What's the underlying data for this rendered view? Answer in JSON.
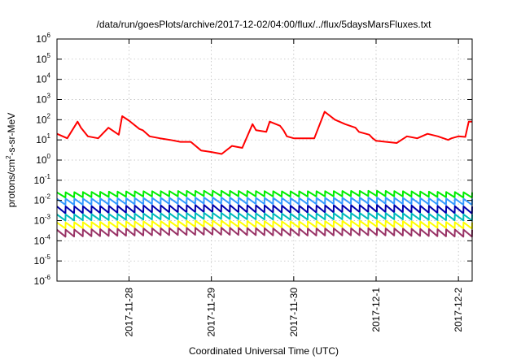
{
  "chart_data": {
    "type": "line",
    "title": "/data/run/goesPlots/archive/2017-12-02/04:00/flux/../flux/5daysMarsFluxes.txt",
    "xlabel": "Coordinated Universal Time (UTC)",
    "ylabel": {
      "prefix": "protons/cm",
      "sup": "2",
      "suffix": "-s-sr-MeV"
    },
    "y_scale": "log",
    "ylim": [
      1e-06,
      1000000.0
    ],
    "xlim": [
      "2017-11-27T03:00",
      "2017-12-02T04:00"
    ],
    "grid": true,
    "y_ticks": [
      {
        "base": "10",
        "exp": "-6",
        "value": 1e-06
      },
      {
        "base": "10",
        "exp": "-5",
        "value": 1e-05
      },
      {
        "base": "10",
        "exp": "-4",
        "value": 0.0001
      },
      {
        "base": "10",
        "exp": "-3",
        "value": 0.001
      },
      {
        "base": "10",
        "exp": "-2",
        "value": 0.01
      },
      {
        "base": "10",
        "exp": "-1",
        "value": 0.1
      },
      {
        "base": "10",
        "exp": "0",
        "value": 1
      },
      {
        "base": "10",
        "exp": "1",
        "value": 10
      },
      {
        "base": "10",
        "exp": "2",
        "value": 100
      },
      {
        "base": "10",
        "exp": "3",
        "value": 1000
      },
      {
        "base": "10",
        "exp": "4",
        "value": 10000
      },
      {
        "base": "10",
        "exp": "5",
        "value": 100000
      },
      {
        "base": "10",
        "exp": "6",
        "value": 1000000
      }
    ],
    "x_ticks": [
      {
        "label": "2017-11-28",
        "value": "2017-11-28T00:00"
      },
      {
        "label": "2017-11-29",
        "value": "2017-11-29T00:00"
      },
      {
        "label": "2017-11-30",
        "value": "2017-11-30T00:00"
      },
      {
        "label": "2017-12-1",
        "value": "2017-12-01T00:00"
      },
      {
        "label": "2017-12-2",
        "value": "2017-12-02T00:00"
      }
    ],
    "series": [
      {
        "color": "#ff0000",
        "x": [
          "2017-11-27T03:00",
          "2017-11-27T06:00",
          "2017-11-27T09:00",
          "2017-11-27T10:00",
          "2017-11-27T12:00",
          "2017-11-27T15:00",
          "2017-11-27T18:00",
          "2017-11-27T21:00",
          "2017-11-27T22:00",
          "2017-11-28T00:00",
          "2017-11-28T03:00",
          "2017-11-28T04:00",
          "2017-11-28T06:00",
          "2017-11-28T09:00",
          "2017-11-28T12:00",
          "2017-11-28T15:00",
          "2017-11-28T18:00",
          "2017-11-28T21:00",
          "2017-11-29T00:00",
          "2017-11-29T03:00",
          "2017-11-29T06:00",
          "2017-11-29T09:00",
          "2017-11-29T12:00",
          "2017-11-29T13:00",
          "2017-11-29T16:00",
          "2017-11-29T17:00",
          "2017-11-29T20:00",
          "2017-11-29T21:00",
          "2017-11-29T22:00",
          "2017-11-30T00:00",
          "2017-11-30T03:00",
          "2017-11-30T06:00",
          "2017-11-30T09:00",
          "2017-11-30T12:00",
          "2017-11-30T15:00",
          "2017-11-30T18:00",
          "2017-11-30T19:00",
          "2017-11-30T22:00",
          "2017-11-30T23:00",
          "2017-12-01T00:00",
          "2017-12-01T03:00",
          "2017-12-01T06:00",
          "2017-12-01T09:00",
          "2017-12-01T12:00",
          "2017-12-01T15:00",
          "2017-12-01T18:00",
          "2017-12-01T21:00",
          "2017-12-01T22:00",
          "2017-12-02T00:00",
          "2017-12-02T02:00",
          "2017-12-02T03:00",
          "2017-12-02T04:00"
        ],
        "y": [
          20,
          12,
          80,
          40,
          15,
          12,
          40,
          18,
          150,
          90,
          35,
          30,
          15,
          12,
          10,
          8,
          8,
          3,
          2.5,
          2,
          5,
          4,
          60,
          30,
          25,
          80,
          50,
          30,
          15,
          12,
          12,
          12,
          250,
          100,
          60,
          40,
          25,
          18,
          12,
          9,
          8,
          7,
          15,
          12,
          20,
          15,
          10,
          12,
          15,
          14,
          80,
          80
        ]
      },
      {
        "color": "#00ee00",
        "x": [
          "2017-11-27T03:00",
          "2017-11-28T00:00",
          "2017-11-29T00:00",
          "2017-11-30T00:00",
          "2017-12-01T00:00",
          "2017-12-02T04:00"
        ],
        "y": [
          0.025,
          0.028,
          0.03,
          0.028,
          0.03,
          0.025
        ],
        "sawtooth": {
          "low_factor": 0.55,
          "cycles": 48
        }
      },
      {
        "color": "#3399ff",
        "x": [
          "2017-11-27T03:00",
          "2017-11-28T00:00",
          "2017-11-29T00:00",
          "2017-11-30T00:00",
          "2017-12-01T00:00",
          "2017-12-02T04:00"
        ],
        "y": [
          0.012,
          0.013,
          0.014,
          0.013,
          0.014,
          0.012
        ],
        "sawtooth": {
          "low_factor": 0.5,
          "cycles": 48
        }
      },
      {
        "color": "#0000aa",
        "x": [
          "2017-11-27T03:00",
          "2017-11-28T00:00",
          "2017-11-29T00:00",
          "2017-11-30T00:00",
          "2017-12-01T00:00",
          "2017-12-02T04:00"
        ],
        "y": [
          0.005,
          0.0055,
          0.006,
          0.0055,
          0.006,
          0.005
        ],
        "sawtooth": {
          "low_factor": 0.45,
          "cycles": 48
        }
      },
      {
        "color": "#00bbbb",
        "x": [
          "2017-11-27T03:00",
          "2017-11-28T00:00",
          "2017-11-29T00:00",
          "2017-11-30T00:00",
          "2017-12-01T00:00",
          "2017-12-02T04:00"
        ],
        "y": [
          0.002,
          0.0022,
          0.0024,
          0.0022,
          0.0024,
          0.002
        ],
        "sawtooth": {
          "low_factor": 0.5,
          "cycles": 48
        }
      },
      {
        "color": "#ffff00",
        "x": [
          "2017-11-27T03:00",
          "2017-11-28T00:00",
          "2017-11-29T00:00",
          "2017-11-30T00:00",
          "2017-12-01T00:00",
          "2017-12-02T04:00"
        ],
        "y": [
          0.0008,
          0.0009,
          0.001,
          0.0009,
          0.001,
          0.0008
        ],
        "sawtooth": {
          "low_factor": 0.5,
          "cycles": 48
        }
      },
      {
        "color": "#993366",
        "x": [
          "2017-11-27T03:00",
          "2017-11-28T00:00",
          "2017-11-29T00:00",
          "2017-11-30T00:00",
          "2017-12-01T00:00",
          "2017-12-02T04:00"
        ],
        "y": [
          0.00035,
          0.0004,
          0.00045,
          0.0004,
          0.00042,
          0.00035
        ],
        "sawtooth": {
          "low_factor": 0.45,
          "cycles": 48
        }
      }
    ]
  }
}
